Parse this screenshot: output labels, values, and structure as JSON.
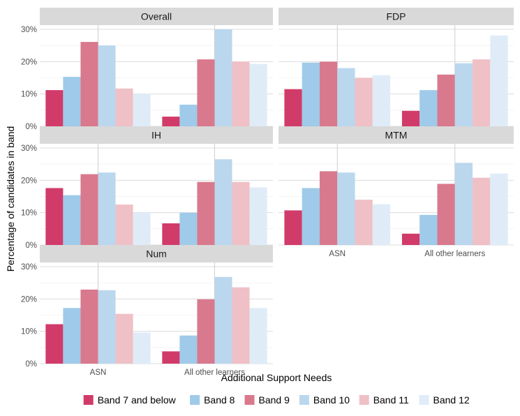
{
  "chart_data": {
    "type": "bar",
    "xlabel": "Additional Support Needs",
    "ylabel": "Percentage of candidates in band",
    "ylim": [
      0,
      30
    ],
    "yticks": [
      0,
      10,
      20,
      30
    ],
    "ytick_labels": [
      "0%",
      "10%",
      "20%",
      "30%"
    ],
    "categories": [
      "ASN",
      "All other learners"
    ],
    "legend_position": "bottom",
    "grid": true,
    "series_names": [
      "Band 7 and below",
      "Band 8",
      "Band 9",
      "Band 10",
      "Band 11",
      "Band 12"
    ],
    "series_colors": [
      "#d13b6a",
      "#9fcae9",
      "#d9798d",
      "#bad7ee",
      "#efc0c6",
      "#dfecf8"
    ],
    "panels": [
      {
        "title": "Overall",
        "values": [
          [
            11.2,
            3.0
          ],
          [
            15.3,
            6.7
          ],
          [
            26.1,
            20.7
          ],
          [
            25.0,
            30.0
          ],
          [
            11.7,
            20.0
          ],
          [
            10.0,
            19.3
          ]
        ]
      },
      {
        "title": "FDP",
        "values": [
          [
            11.5,
            4.8
          ],
          [
            19.7,
            11.2
          ],
          [
            20.0,
            16.0
          ],
          [
            18.0,
            19.5
          ],
          [
            15.0,
            20.7
          ],
          [
            15.8,
            28.1
          ]
        ]
      },
      {
        "title": "IH",
        "values": [
          [
            17.6,
            6.7
          ],
          [
            15.4,
            10.0
          ],
          [
            21.9,
            19.5
          ],
          [
            22.4,
            26.5
          ],
          [
            12.5,
            19.5
          ],
          [
            10.0,
            17.8
          ]
        ]
      },
      {
        "title": "MTM",
        "values": [
          [
            10.7,
            3.5
          ],
          [
            17.6,
            9.3
          ],
          [
            22.8,
            18.9
          ],
          [
            22.4,
            25.4
          ],
          [
            14.0,
            20.8
          ],
          [
            12.6,
            22.1
          ]
        ]
      },
      {
        "title": "Num",
        "values": [
          [
            12.2,
            3.8
          ],
          [
            17.2,
            8.7
          ],
          [
            22.9,
            19.9
          ],
          [
            22.7,
            26.8
          ],
          [
            15.4,
            23.6
          ],
          [
            9.6,
            17.2
          ]
        ]
      }
    ]
  }
}
